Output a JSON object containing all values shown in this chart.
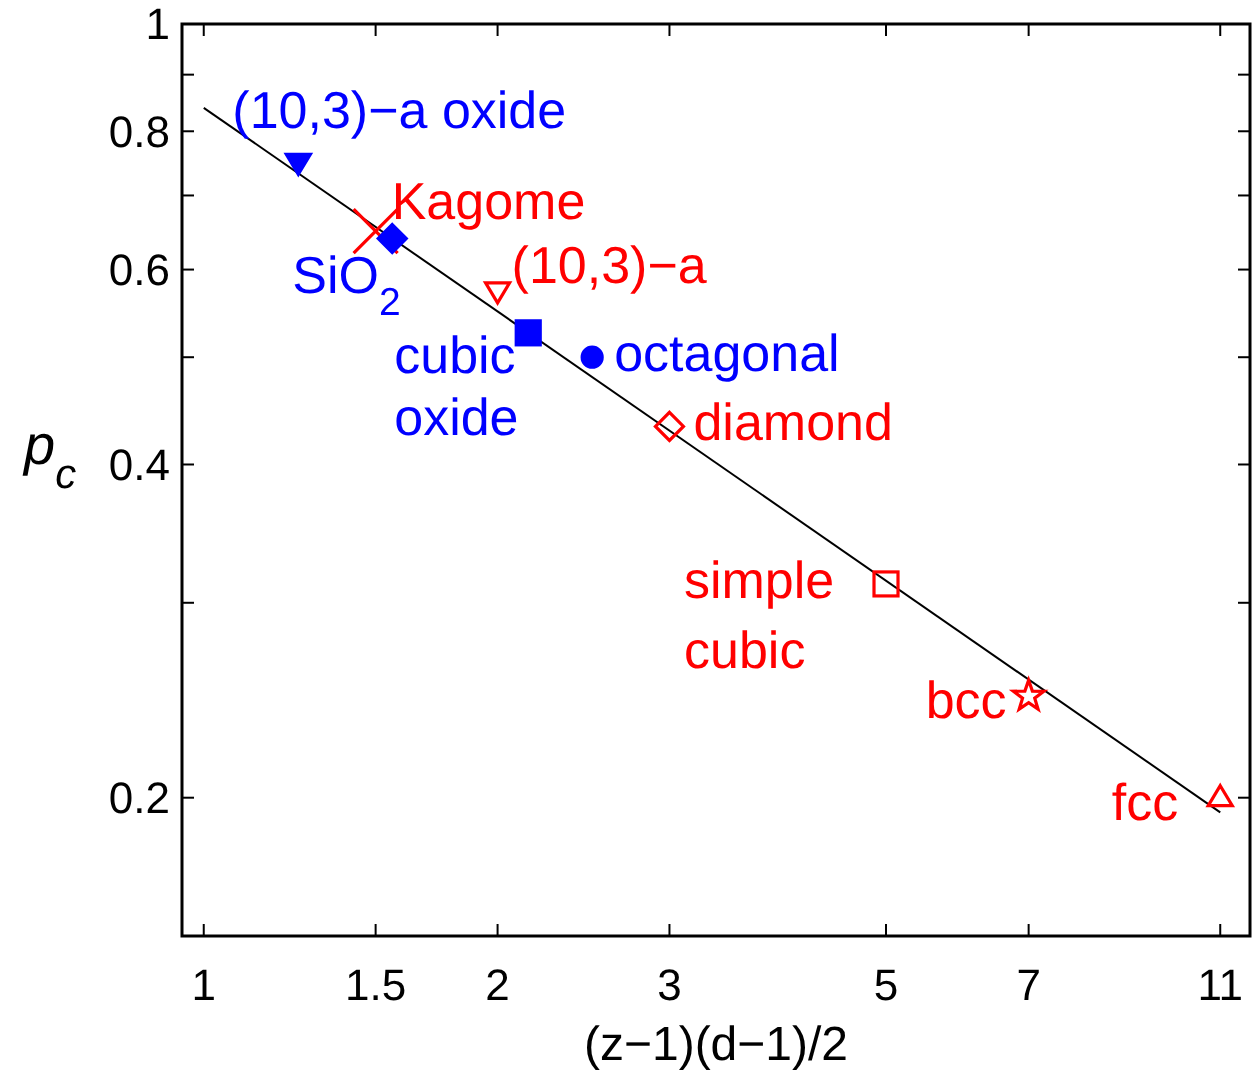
{
  "chart_data": {
    "type": "scatter",
    "xlabel": "(z−1)(d−1)/2",
    "ylabel": "p$_{c}$",
    "log": "xy",
    "grid": false,
    "xlim": [
      0.95,
      11.8
    ],
    "xticks": [
      1,
      1.5,
      2,
      3,
      5,
      7,
      11
    ],
    "ylim": [
      0.15,
      1
    ],
    "yticks": [
      {
        "value": 0.2,
        "label": "0.2"
      },
      {
        "value": 0.3,
        "label": null
      },
      {
        "value": 0.4,
        "label": "0.4"
      },
      {
        "value": 0.5,
        "label": null
      },
      {
        "value": 0.6,
        "label": "0.6"
      },
      {
        "value": 0.7,
        "label": null
      },
      {
        "value": 0.8,
        "label": "0.8"
      },
      {
        "value": 0.9,
        "label": null
      },
      {
        "value": 1,
        "label": "1"
      }
    ],
    "series": [
      {
        "type": "line",
        "color": "#000000",
        "x": [
          1,
          11
        ],
        "values": [
          0.84,
          0.194
        ],
        "marker": "none",
        "line_style": "solid"
      },
      {
        "name": "(10,3)−a oxide",
        "color": "#0000ff",
        "x": [
          1.25
        ],
        "values": [
          0.75
        ],
        "marker": "triangle-down"
      },
      {
        "name": "Kagome",
        "color": "#ff0000",
        "x": [
          1.5
        ],
        "values": [
          0.65
        ],
        "marker": "cross"
      },
      {
        "name": "SiO$_{2}$",
        "color": "#0000ff",
        "x": [
          1.56
        ],
        "values": [
          0.64
        ],
        "marker": "diamond"
      },
      {
        "name": "(10,3)−a",
        "color": "#ff0000",
        "x": [
          2.0
        ],
        "values": [
          0.574
        ],
        "marker": "triangle-down"
      },
      {
        "name": "cubic oxide",
        "color": "#0000ff",
        "x": [
          2.15
        ],
        "values": [
          0.526
        ],
        "marker": "square"
      },
      {
        "name": "octagonal",
        "color": "#0000ff",
        "x": [
          2.5
        ],
        "values": [
          0.5
        ],
        "marker": "circle"
      },
      {
        "name": "diamond",
        "color": "#ff0000",
        "x": [
          3
        ],
        "values": [
          0.433
        ],
        "marker": "diamond"
      },
      {
        "name": "simple cubic",
        "color": "#ff0000",
        "x": [
          5
        ],
        "values": [
          0.312
        ],
        "marker": "square"
      },
      {
        "name": "bcc",
        "color": "#ff0000",
        "x": [
          7
        ],
        "values": [
          0.247
        ],
        "marker": "star"
      },
      {
        "name": "fcc",
        "color": "#ff0000",
        "x": [
          11
        ],
        "values": [
          0.2
        ],
        "marker": "triangle"
      }
    ]
  }
}
